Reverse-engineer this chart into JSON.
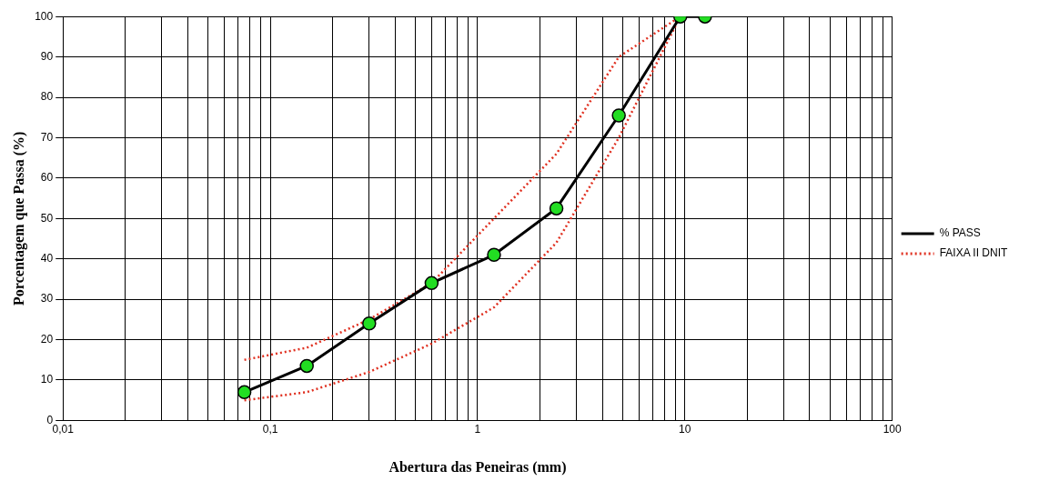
{
  "chart_data": {
    "type": "line",
    "xlabel": "Abertura das Peneiras (mm)",
    "ylabel": "Porcentagem que Passa (%)",
    "log": "x",
    "grid": true,
    "legend": "right",
    "xlim": [
      0.01,
      100
    ],
    "xticks": [
      {
        "value": 0.01,
        "label": "0,01"
      },
      {
        "value": 0.02,
        "label": null
      },
      {
        "value": 0.03,
        "label": null
      },
      {
        "value": 0.04,
        "label": null
      },
      {
        "value": 0.05,
        "label": null
      },
      {
        "value": 0.06,
        "label": null
      },
      {
        "value": 0.07,
        "label": null
      },
      {
        "value": 0.08,
        "label": null
      },
      {
        "value": 0.09,
        "label": null
      },
      {
        "value": 0.1,
        "label": "0,1"
      },
      {
        "value": 0.2,
        "label": null
      },
      {
        "value": 0.3,
        "label": null
      },
      {
        "value": 0.4,
        "label": null
      },
      {
        "value": 0.5,
        "label": null
      },
      {
        "value": 0.6,
        "label": null
      },
      {
        "value": 0.7,
        "label": null
      },
      {
        "value": 0.8,
        "label": null
      },
      {
        "value": 0.9,
        "label": null
      },
      {
        "value": 1,
        "label": "1"
      },
      {
        "value": 2,
        "label": null
      },
      {
        "value": 3,
        "label": null
      },
      {
        "value": 4,
        "label": null
      },
      {
        "value": 5,
        "label": null
      },
      {
        "value": 6,
        "label": null
      },
      {
        "value": 7,
        "label": null
      },
      {
        "value": 8,
        "label": null
      },
      {
        "value": 9,
        "label": null
      },
      {
        "value": 10,
        "label": "10"
      },
      {
        "value": 20,
        "label": null
      },
      {
        "value": 30,
        "label": null
      },
      {
        "value": 40,
        "label": null
      },
      {
        "value": 50,
        "label": null
      },
      {
        "value": 60,
        "label": null
      },
      {
        "value": 70,
        "label": null
      },
      {
        "value": 80,
        "label": null
      },
      {
        "value": 90,
        "label": null
      },
      {
        "value": 100,
        "label": "100"
      }
    ],
    "ylim": [
      0,
      100
    ],
    "yticks": [
      0,
      10,
      20,
      30,
      40,
      50,
      60,
      70,
      80,
      90,
      100
    ],
    "series": [
      {
        "name": "% PASS",
        "color": "#000000",
        "colors": [
          "#22dd22",
          "#22dd22",
          "#22dd22",
          "#22dd22",
          "#22dd22",
          "#22dd22",
          "#22dd22",
          "#22dd22",
          "#22dd22"
        ],
        "marker": "circle",
        "line_style": "solid",
        "x": [
          0.075,
          0.15,
          0.3,
          0.6,
          1.2,
          2.4,
          4.8,
          9.5,
          12.5
        ],
        "values": [
          7,
          13.5,
          24,
          34,
          41,
          52.5,
          75.5,
          100,
          100
        ]
      },
      {
        "name": "FAIXA II DNIT",
        "color": "#e03020",
        "marker": "none",
        "line_style": "dotted",
        "x": [
          0.075,
          0.15,
          0.3,
          0.6,
          1.2,
          2.4,
          4.8,
          9.5
        ],
        "values": [
          15,
          18,
          25,
          34,
          50,
          66,
          90,
          100
        ]
      },
      {
        "color": "#e03020",
        "marker": "none",
        "line_style": "dotted",
        "x": [
          0.075,
          0.15,
          0.3,
          0.6,
          1.2,
          2.4,
          4.8,
          9.5
        ],
        "values": [
          5,
          7,
          12,
          19,
          28,
          44,
          70,
          100
        ]
      }
    ]
  }
}
